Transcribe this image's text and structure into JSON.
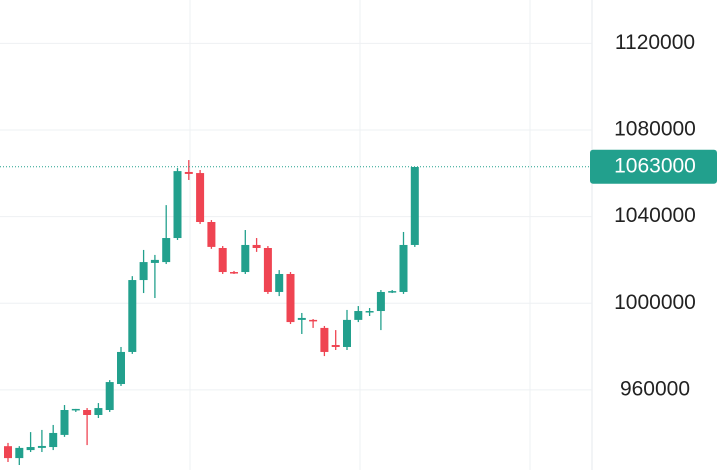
{
  "chart_data": {
    "type": "candlestick",
    "open": [
      934000,
      928500,
      932200,
      933200,
      933600,
      939200,
      950700,
      950700,
      948400,
      950700,
      962700,
      977500,
      1010700,
      1018600,
      1019000,
      1030100,
      1060600,
      1060100,
      1037500,
      1025500,
      1014400,
      1014400,
      1026900,
      1025500,
      1005200,
      1013500,
      992300,
      992300,
      988600,
      980700,
      979800,
      992300,
      996000,
      996400,
      1005200,
      1005200,
      1026900
    ],
    "high": [
      935500,
      934000,
      940500,
      941500,
      943800,
      953000,
      951200,
      951600,
      953900,
      964500,
      979800,
      1012500,
      1024600,
      1022300,
      1045300,
      1062400,
      1066100,
      1061500,
      1038400,
      1026400,
      1014900,
      1033800,
      1030100,
      1026400,
      1015300,
      1014400,
      995500,
      992700,
      989500,
      987600,
      996900,
      998700,
      997800,
      1006100,
      1006100,
      1032900,
      1062900
    ],
    "low": [
      926700,
      925300,
      931300,
      931300,
      932200,
      938300,
      949800,
      934500,
      947000,
      949800,
      961800,
      976600,
      1004700,
      1002400,
      1018100,
      1029200,
      1056900,
      1036600,
      1025100,
      1013500,
      1013500,
      1013500,
      1023700,
      1004300,
      1003300,
      990400,
      985800,
      988600,
      975600,
      978400,
      978400,
      991300,
      994100,
      987600,
      1004700,
      1004300,
      1026000
    ],
    "close": [
      928500,
      933200,
      933600,
      934100,
      940100,
      950700,
      951200,
      948400,
      951600,
      963600,
      977500,
      1010700,
      1019000,
      1020000,
      1030100,
      1061000,
      1059700,
      1037500,
      1026000,
      1014400,
      1014000,
      1026900,
      1025500,
      1005200,
      1013500,
      991300,
      993200,
      991800,
      977500,
      979800,
      992300,
      996400,
      996400,
      1005200,
      1005600,
      1026900,
      1062900
    ],
    "up_color": "#22a08d",
    "down_color": "#ef4452",
    "last_price": 1063000,
    "ylim": [
      923000,
      1140000
    ],
    "yticks": [
      960000,
      1000000,
      1040000,
      1080000,
      1120000
    ],
    "grid": true
  }
}
